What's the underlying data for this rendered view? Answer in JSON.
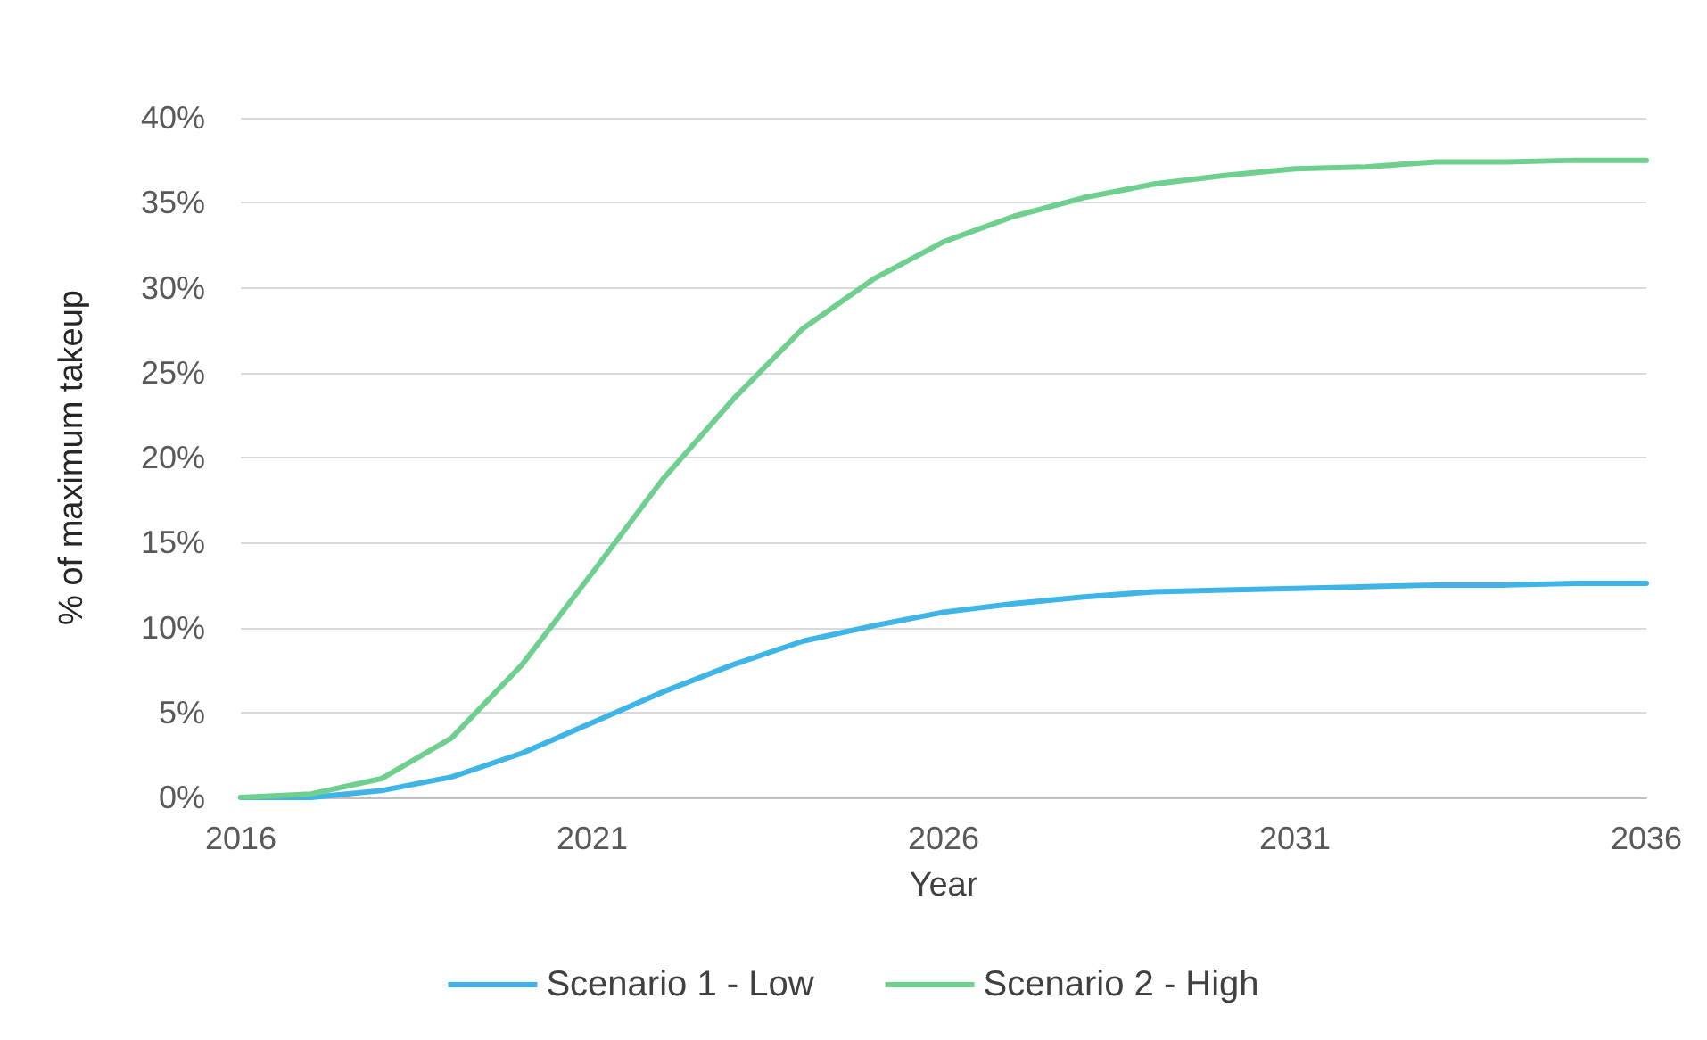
{
  "chart_data": {
    "type": "line",
    "xlabel": "Year",
    "ylabel": "% of maximum takeup",
    "x": [
      2016,
      2017,
      2018,
      2019,
      2020,
      2021,
      2022,
      2023,
      2024,
      2025,
      2026,
      2027,
      2028,
      2029,
      2030,
      2031,
      2032,
      2033,
      2034,
      2035,
      2036
    ],
    "series": [
      {
        "name": "Scenario 1 - Low",
        "color": "#3fb4e6",
        "values": [
          0,
          0,
          0.4,
          1.2,
          2.6,
          4.4,
          6.2,
          7.8,
          9.2,
          10.1,
          10.9,
          11.4,
          11.8,
          12.1,
          12.2,
          12.3,
          12.4,
          12.5,
          12.5,
          12.6,
          12.6
        ]
      },
      {
        "name": "Scenario 2 - High",
        "color": "#6fcf8f",
        "values": [
          0,
          0.2,
          1.1,
          3.5,
          7.8,
          13.2,
          18.7,
          23.4,
          27.6,
          30.5,
          32.7,
          34.2,
          35.3,
          36.1,
          36.6,
          37.0,
          37.1,
          37.4,
          37.4,
          37.5,
          37.5
        ]
      }
    ],
    "xlim": [
      2016,
      2036
    ],
    "xticks": [
      2016,
      2021,
      2026,
      2031,
      2036
    ],
    "ylim": [
      0,
      40
    ],
    "yticks": [
      {
        "value": 0,
        "label": "0%"
      },
      {
        "value": 5,
        "label": "5%"
      },
      {
        "value": 10,
        "label": "10%"
      },
      {
        "value": 15,
        "label": "15%"
      },
      {
        "value": 20,
        "label": "20%"
      },
      {
        "value": 25,
        "label": "25%"
      },
      {
        "value": 30,
        "label": "30%"
      },
      {
        "value": 35,
        "label": "35%"
      },
      {
        "value": 40,
        "label": "40%"
      }
    ],
    "grid": "y",
    "legend": "bottom",
    "marker": "none",
    "line_style": "solid"
  }
}
